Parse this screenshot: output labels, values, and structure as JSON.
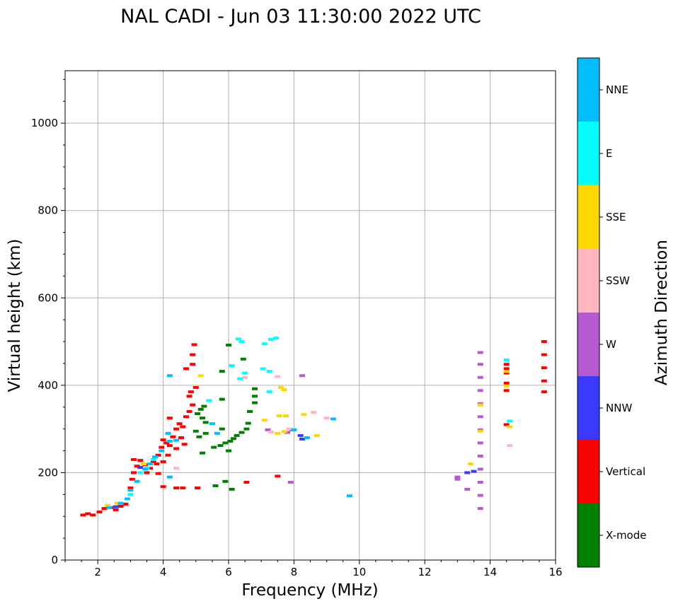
{
  "chart_data": {
    "type": "scatter",
    "title": "NAL CADI - Jun 03 11:30:00 2022 UTC",
    "xlabel": "Frequency (MHz)",
    "ylabel": "Virtual height (km)",
    "xlim": [
      1,
      16
    ],
    "ylim": [
      0,
      1120
    ],
    "xticks": [
      2,
      4,
      6,
      8,
      10,
      12,
      14,
      16
    ],
    "xtick_labels": [
      "2",
      "4",
      "6",
      "8",
      "10",
      "12",
      "14",
      "16"
    ],
    "yticks": [
      0,
      200,
      400,
      600,
      800,
      1000
    ],
    "ytick_labels": [
      "0",
      "200",
      "400",
      "600",
      "800",
      "1000"
    ],
    "grid": true,
    "colorbar": {
      "label": "Azimuth Direction",
      "categories": [
        {
          "name": "X-mode",
          "color": "#008000"
        },
        {
          "name": "Vertical",
          "color": "#ff0000"
        },
        {
          "name": "NNW",
          "color": "#3a3aff"
        },
        {
          "name": "W",
          "color": "#b45ad2"
        },
        {
          "name": "SSW",
          "color": "#ffb6c1"
        },
        {
          "name": "SSE",
          "color": "#ffd700"
        },
        {
          "name": "E",
          "color": "#00ffff"
        },
        {
          "name": "NNE",
          "color": "#00bfff"
        }
      ]
    },
    "series": [
      {
        "name": "X-mode",
        "points": [
          [
            5.05,
            335
          ],
          [
            5.15,
            345
          ],
          [
            5.25,
            352
          ],
          [
            5.3,
            315
          ],
          [
            5.2,
            325
          ],
          [
            5.0,
            295
          ],
          [
            5.1,
            282
          ],
          [
            5.2,
            245
          ],
          [
            5.55,
            258
          ],
          [
            5.75,
            262
          ],
          [
            5.9,
            268
          ],
          [
            6.05,
            272
          ],
          [
            6.15,
            278
          ],
          [
            6.25,
            285
          ],
          [
            6.4,
            292
          ],
          [
            6.55,
            300
          ],
          [
            6.6,
            313
          ],
          [
            6.65,
            340
          ],
          [
            6.8,
            360
          ],
          [
            6.8,
            375
          ],
          [
            6.8,
            392
          ],
          [
            5.8,
            300
          ],
          [
            5.8,
            368
          ],
          [
            6.0,
            250
          ],
          [
            6.45,
            460
          ],
          [
            6.0,
            492
          ],
          [
            5.8,
            432
          ],
          [
            5.6,
            170
          ],
          [
            5.9,
            180
          ],
          [
            6.1,
            162
          ],
          [
            5.3,
            290
          ]
        ]
      },
      {
        "name": "Vertical",
        "points": [
          [
            1.55,
            103
          ],
          [
            1.7,
            106
          ],
          [
            1.85,
            103
          ],
          [
            2.05,
            110
          ],
          [
            2.2,
            118
          ],
          [
            2.4,
            120
          ],
          [
            2.55,
            115
          ],
          [
            2.7,
            123
          ],
          [
            2.85,
            128
          ],
          [
            3.0,
            165
          ],
          [
            3.05,
            185
          ],
          [
            3.1,
            200
          ],
          [
            3.2,
            215
          ],
          [
            3.3,
            228
          ],
          [
            3.45,
            218
          ],
          [
            3.6,
            210
          ],
          [
            3.7,
            225
          ],
          [
            3.85,
            198
          ],
          [
            3.85,
            240
          ],
          [
            3.95,
            258
          ],
          [
            4.0,
            275
          ],
          [
            4.1,
            268
          ],
          [
            4.2,
            262
          ],
          [
            4.3,
            282
          ],
          [
            4.4,
            300
          ],
          [
            4.5,
            312
          ],
          [
            4.6,
            305
          ],
          [
            4.7,
            328
          ],
          [
            4.8,
            340
          ],
          [
            4.9,
            355
          ],
          [
            4.8,
            375
          ],
          [
            4.85,
            385
          ],
          [
            4.2,
            325
          ],
          [
            4.4,
            255
          ],
          [
            4.15,
            240
          ],
          [
            4.55,
            280
          ],
          [
            4.65,
            265
          ],
          [
            4.7,
            438
          ],
          [
            4.9,
            448
          ],
          [
            4.95,
            493
          ],
          [
            4.9,
            470
          ],
          [
            4.4,
            165
          ],
          [
            4.6,
            165
          ],
          [
            5.05,
            165
          ],
          [
            4.0,
            168
          ],
          [
            6.55,
            178
          ],
          [
            7.5,
            192
          ],
          [
            14.5,
            388
          ],
          [
            14.5,
            405
          ],
          [
            14.5,
            428
          ],
          [
            14.5,
            438
          ],
          [
            14.5,
            448
          ],
          [
            14.5,
            310
          ],
          [
            15.65,
            385
          ],
          [
            15.65,
            410
          ],
          [
            15.65,
            440
          ],
          [
            15.65,
            470
          ],
          [
            15.65,
            500
          ],
          [
            3.1,
            230
          ],
          [
            3.5,
            200
          ],
          [
            3.8,
            220
          ],
          [
            5.0,
            395
          ],
          [
            4.0,
            225
          ]
        ]
      },
      {
        "name": "NNW",
        "points": [
          [
            13.3,
            200
          ],
          [
            13.5,
            203
          ],
          [
            7.95,
            298
          ],
          [
            8.25,
            277
          ],
          [
            8.2,
            285
          ],
          [
            3.3,
            212
          ],
          [
            2.55,
            122
          ]
        ]
      },
      {
        "name": "W",
        "points": [
          [
            13.7,
            118
          ],
          [
            13.7,
            148
          ],
          [
            13.7,
            178
          ],
          [
            13.7,
            208
          ],
          [
            13.7,
            238
          ],
          [
            13.7,
            268
          ],
          [
            13.7,
            298
          ],
          [
            13.7,
            328
          ],
          [
            13.7,
            358
          ],
          [
            13.7,
            388
          ],
          [
            13.7,
            418
          ],
          [
            13.7,
            448
          ],
          [
            13.7,
            475
          ],
          [
            13.0,
            190
          ],
          [
            13.0,
            185
          ],
          [
            13.3,
            162
          ],
          [
            7.9,
            178
          ],
          [
            8.25,
            422
          ],
          [
            7.2,
            298
          ],
          [
            7.8,
            292
          ]
        ]
      },
      {
        "name": "SSW",
        "points": [
          [
            14.6,
            262
          ],
          [
            14.6,
            318
          ],
          [
            6.5,
            418
          ],
          [
            7.5,
            420
          ],
          [
            8.6,
            338
          ],
          [
            9.0,
            325
          ],
          [
            7.3,
            293
          ],
          [
            7.85,
            300
          ],
          [
            4.4,
            210
          ]
        ]
      },
      {
        "name": "SSE",
        "points": [
          [
            7.1,
            320
          ],
          [
            7.55,
            330
          ],
          [
            7.75,
            330
          ],
          [
            8.3,
            333
          ],
          [
            8.7,
            285
          ],
          [
            7.5,
            290
          ],
          [
            7.7,
            294
          ],
          [
            7.6,
            395
          ],
          [
            7.7,
            390
          ],
          [
            5.15,
            422
          ],
          [
            13.4,
            220
          ],
          [
            14.6,
            305
          ],
          [
            14.5,
            398
          ],
          [
            14.5,
            432
          ],
          [
            13.7,
            355
          ],
          [
            13.7,
            295
          ],
          [
            3.4,
            220
          ],
          [
            2.6,
            130
          ],
          [
            2.3,
            125
          ]
        ]
      },
      {
        "name": "E",
        "points": [
          [
            6.3,
            506
          ],
          [
            6.4,
            500
          ],
          [
            7.1,
            495
          ],
          [
            7.3,
            505
          ],
          [
            7.45,
            508
          ],
          [
            7.05,
            438
          ],
          [
            7.25,
            432
          ],
          [
            6.35,
            415
          ],
          [
            6.1,
            445
          ],
          [
            6.5,
            428
          ],
          [
            7.25,
            385
          ],
          [
            3.5,
            210
          ],
          [
            3.7,
            230
          ],
          [
            3.3,
            200
          ],
          [
            14.5,
            458
          ],
          [
            14.6,
            318
          ],
          [
            5.4,
            365
          ],
          [
            3.0,
            150
          ]
        ]
      },
      {
        "name": "NNE",
        "points": [
          [
            2.9,
            140
          ],
          [
            3.0,
            160
          ],
          [
            3.2,
            180
          ],
          [
            3.45,
            208
          ],
          [
            3.6,
            220
          ],
          [
            3.75,
            236
          ],
          [
            3.95,
            250
          ],
          [
            4.2,
            272
          ],
          [
            4.15,
            290
          ],
          [
            4.2,
            422
          ],
          [
            4.4,
            274
          ],
          [
            5.5,
            312
          ],
          [
            5.65,
            290
          ],
          [
            9.7,
            147
          ],
          [
            9.2,
            323
          ],
          [
            8.4,
            280
          ],
          [
            2.7,
            130
          ],
          [
            2.35,
            120
          ],
          [
            4.2,
            190
          ],
          [
            8.0,
            298
          ]
        ]
      }
    ]
  }
}
